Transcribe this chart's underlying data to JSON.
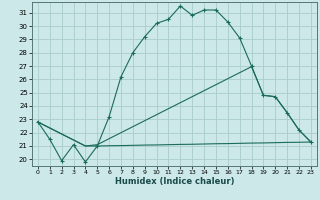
{
  "title": "",
  "xlabel": "Humidex (Indice chaleur)",
  "bg_color": "#cce8e8",
  "grid_color": "#aacccc",
  "line_color": "#1a6b5a",
  "xlim": [
    -0.5,
    23.5
  ],
  "ylim": [
    19.5,
    31.8
  ],
  "yticks": [
    20,
    21,
    22,
    23,
    24,
    25,
    26,
    27,
    28,
    29,
    30,
    31
  ],
  "xticks": [
    0,
    1,
    2,
    3,
    4,
    5,
    6,
    7,
    8,
    9,
    10,
    11,
    12,
    13,
    14,
    15,
    16,
    17,
    18,
    19,
    20,
    21,
    22,
    23
  ],
  "series1_x": [
    0,
    1,
    2,
    3,
    4,
    5,
    6,
    7,
    8,
    9,
    10,
    11,
    12,
    13,
    14,
    15,
    16,
    17,
    18,
    19,
    20,
    21,
    22,
    23
  ],
  "series1_y": [
    22.8,
    21.5,
    19.9,
    21.1,
    19.8,
    21.0,
    23.2,
    26.2,
    28.0,
    29.2,
    30.2,
    30.5,
    31.5,
    30.8,
    31.2,
    31.2,
    30.3,
    29.1,
    27.0,
    24.8,
    24.7,
    23.5,
    22.2,
    21.3
  ],
  "series2_x": [
    0,
    4,
    5,
    6,
    7,
    8,
    9,
    10,
    11,
    12,
    13,
    14,
    15,
    16,
    17,
    18,
    19,
    20,
    21,
    22,
    23
  ],
  "series2_y": [
    22.8,
    21.0,
    21.0,
    21.02,
    21.03,
    21.05,
    21.07,
    21.08,
    21.1,
    21.12,
    21.13,
    21.15,
    21.17,
    21.18,
    21.2,
    21.22,
    21.23,
    21.25,
    21.27,
    21.28,
    21.3
  ],
  "series3_x": [
    0,
    4,
    5,
    6,
    7,
    8,
    9,
    10,
    11,
    12,
    13,
    14,
    15,
    16,
    17,
    18,
    19,
    20,
    21,
    22,
    23
  ],
  "series3_y": [
    22.8,
    21.0,
    21.1,
    21.55,
    22.0,
    22.45,
    22.9,
    23.35,
    23.8,
    24.25,
    24.7,
    25.15,
    25.6,
    26.05,
    26.5,
    26.95,
    24.8,
    24.7,
    23.5,
    22.2,
    21.3
  ]
}
